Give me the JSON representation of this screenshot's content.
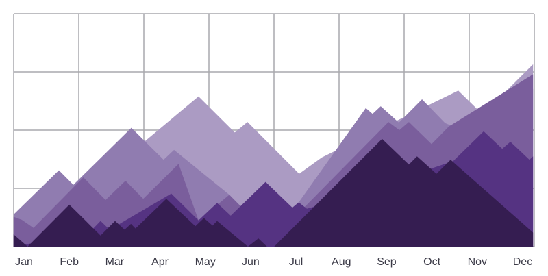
{
  "chart_data": {
    "type": "area",
    "title": "",
    "xlabel": "",
    "ylabel": "",
    "categories": [
      "Jan",
      "Feb",
      "Mar",
      "Apr",
      "May",
      "Jun",
      "Jul",
      "Aug",
      "Sep",
      "Oct",
      "Nov",
      "Dec"
    ],
    "ylim": [
      0,
      4
    ],
    "grid": true,
    "legend": "none",
    "series": [
      {
        "color": "#ab9bc3",
        "points": [
          [
            -0.23,
            0.24
          ],
          [
            0.98,
            0.71
          ],
          [
            3.85,
            2.58
          ],
          [
            4.65,
            1.96
          ],
          [
            4.93,
            2.14
          ],
          [
            6.07,
            1.25
          ],
          [
            6.57,
            1.53
          ],
          [
            9.58,
            2.68
          ],
          [
            10.12,
            2.27
          ],
          [
            11.23,
            3.13
          ]
        ]
      },
      {
        "color": "#907cb0",
        "points": [
          [
            -0.23,
            0.55
          ],
          [
            0.77,
            1.31
          ],
          [
            1.09,
            1.06
          ],
          [
            2.37,
            2.04
          ],
          [
            3.08,
            1.49
          ],
          [
            3.31,
            1.66
          ],
          [
            4.53,
            0.89
          ],
          [
            4.76,
            0.71
          ],
          [
            5.52,
            0.24
          ],
          [
            5.92,
            0.67
          ],
          [
            6.06,
            0.76
          ],
          [
            7.54,
            2.38
          ],
          [
            7.69,
            2.28
          ],
          [
            7.87,
            2.41
          ],
          [
            8.27,
            2.13
          ],
          [
            8.78,
            2.53
          ],
          [
            9.29,
            2.12
          ],
          [
            10.05,
            1.88
          ],
          [
            11.23,
            2.71
          ]
        ]
      },
      {
        "color": "#7a5e9c",
        "points": [
          [
            -0.23,
            0.51
          ],
          [
            -0.05,
            0.46
          ],
          [
            0.21,
            0.32
          ],
          [
            1.31,
            1.19
          ],
          [
            1.8,
            0.8
          ],
          [
            2.24,
            1.13
          ],
          [
            2.63,
            0.82
          ],
          [
            3.41,
            1.42
          ],
          [
            3.85,
            0.45
          ],
          [
            4.53,
            0.89
          ],
          [
            4.91,
            0.59
          ],
          [
            5.52,
            0.18
          ],
          [
            6.23,
            0.71
          ],
          [
            8.04,
            2.14
          ],
          [
            8.28,
            2.0
          ],
          [
            8.49,
            2.14
          ],
          [
            8.99,
            1.76
          ],
          [
            9.37,
            2.06
          ],
          [
            11.23,
            2.96
          ]
        ]
      },
      {
        "color": "#553382",
        "points": [
          [
            -0.23,
            0
          ],
          [
            1.44,
            0.24
          ],
          [
            1.69,
            0.44
          ],
          [
            1.89,
            0.29
          ],
          [
            3.25,
            0.91
          ],
          [
            3.85,
            0.45
          ],
          [
            4.26,
            0.75
          ],
          [
            4.56,
            0.53
          ],
          [
            5.33,
            1.11
          ],
          [
            5.92,
            0.67
          ],
          [
            6.06,
            0.76
          ],
          [
            6.24,
            0.65
          ],
          [
            7.03,
            0.82
          ],
          [
            9.47,
            1.47
          ],
          [
            10.14,
            1.98
          ],
          [
            10.55,
            1.68
          ],
          [
            10.73,
            1.8
          ],
          [
            11.15,
            1.49
          ],
          [
            11.23,
            1.55
          ]
        ]
      },
      {
        "color": "#351d51",
        "points": [
          [
            -0.23,
            0.21
          ],
          [
            0.08,
            0
          ],
          [
            1.0,
            0.72
          ],
          [
            1.69,
            0.19
          ],
          [
            2.01,
            0.44
          ],
          [
            2.22,
            0.29
          ],
          [
            2.36,
            0.39
          ],
          [
            2.46,
            0.31
          ],
          [
            3.14,
            0.82
          ],
          [
            3.78,
            0.35
          ],
          [
            3.97,
            0.49
          ],
          [
            4.16,
            0.36
          ],
          [
            4.26,
            0.44
          ],
          [
            4.94,
            0
          ],
          [
            5.17,
            0.14
          ],
          [
            5.36,
            0
          ],
          [
            5.52,
            0
          ],
          [
            7.9,
            1.85
          ],
          [
            8.49,
            1.41
          ],
          [
            8.67,
            1.55
          ],
          [
            9.1,
            1.25
          ],
          [
            9.41,
            1.49
          ],
          [
            11.23,
            0.24
          ]
        ]
      }
    ]
  }
}
